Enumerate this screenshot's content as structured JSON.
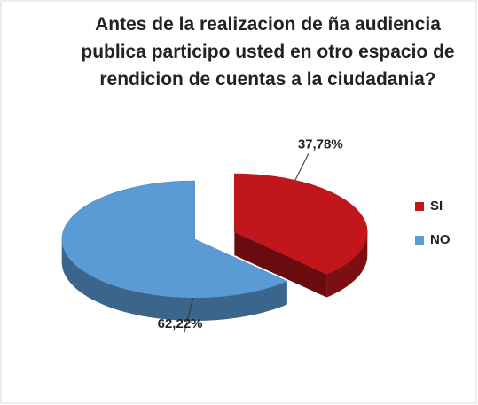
{
  "chart_data": {
    "type": "pie",
    "title": "Antes de la realizacion de ña audiencia publica participo usted en otro espacio de rendicion de cuentas a la ciudadania?",
    "categories": [
      "SI",
      "NO"
    ],
    "values": [
      37.78,
      62.22
    ],
    "value_labels": [
      "37,78%",
      "62,22%"
    ],
    "colors": [
      "#c0161c",
      "#5b9bd5"
    ],
    "legend": "right"
  }
}
